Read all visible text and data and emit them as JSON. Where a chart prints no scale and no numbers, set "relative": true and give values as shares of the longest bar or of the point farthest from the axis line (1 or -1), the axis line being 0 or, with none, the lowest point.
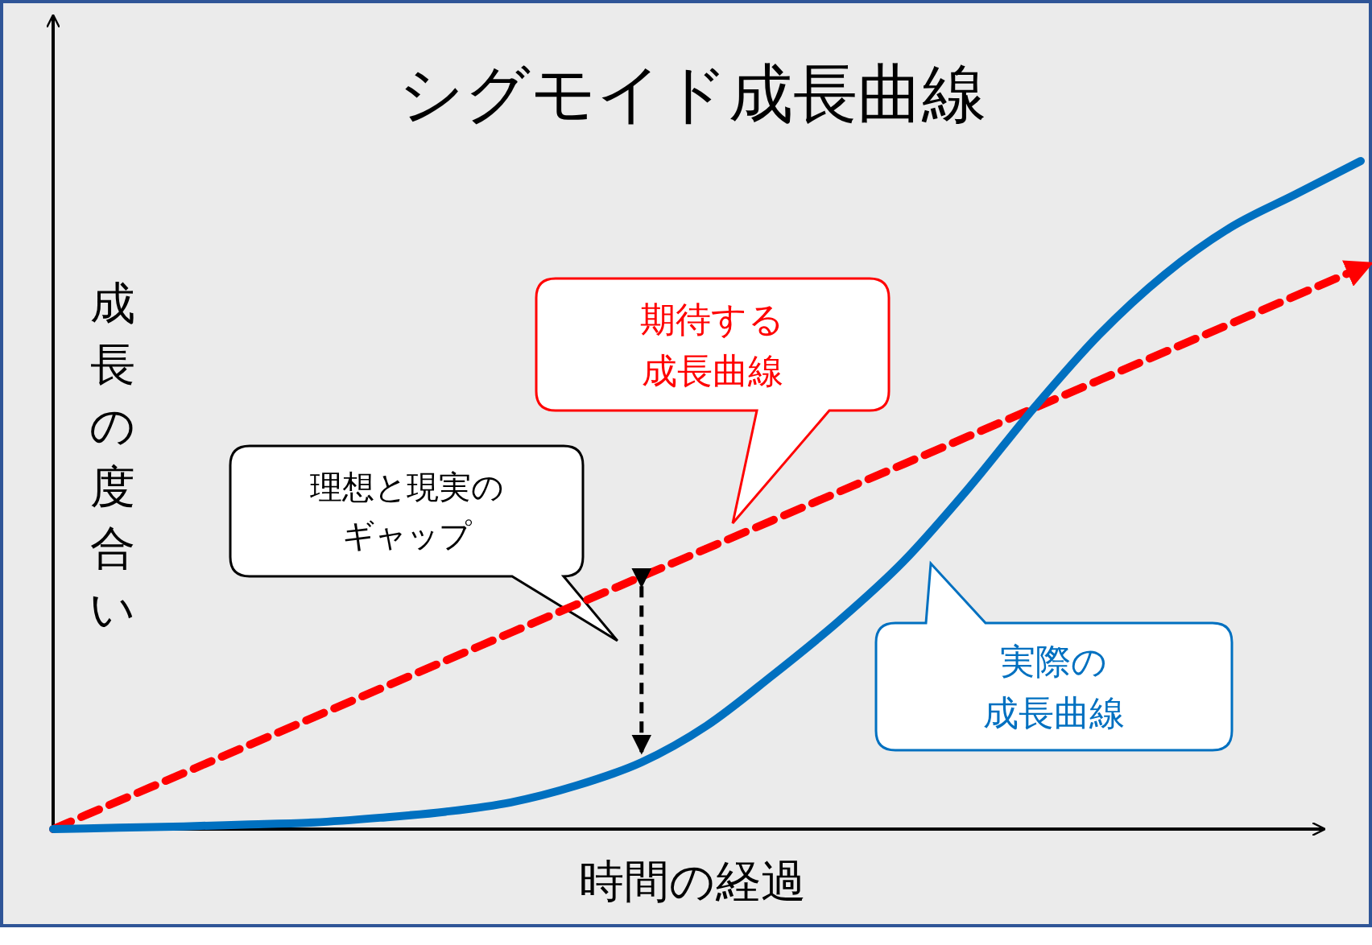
{
  "chart_data": {
    "type": "line",
    "title": "シグモイド成長曲線",
    "xlabel": "時間の経過",
    "ylabel": "成長の度合い",
    "relative": true,
    "categories": [
      null,
      null,
      null,
      null,
      null,
      null,
      null,
      null,
      null,
      null,
      null,
      null,
      null,
      null,
      null,
      null,
      null,
      null,
      null,
      null,
      null
    ],
    "series": [
      {
        "name": "期待する成長曲線",
        "color": "#ff0000",
        "line_style": "dashed",
        "values": [
          0,
          0.042,
          0.084,
          0.126,
          0.168,
          0.21,
          0.252,
          0.294,
          0.336,
          0.378,
          0.42,
          0.462,
          0.504,
          0.546,
          0.588,
          0.63,
          0.672,
          0.714,
          0.756,
          0.798,
          0.84
        ]
      },
      {
        "name": "実際の成長曲線",
        "color": "#0070c0",
        "line_style": "solid",
        "values": [
          0,
          0.002,
          0.004,
          0.007,
          0.01,
          0.017,
          0.026,
          0.04,
          0.065,
          0.1,
          0.155,
          0.23,
          0.31,
          0.4,
          0.51,
          0.63,
          0.74,
          0.83,
          0.9,
          0.95,
          1
        ]
      }
    ],
    "annotations": [
      "理想と現実のギャップ"
    ]
  }
}
